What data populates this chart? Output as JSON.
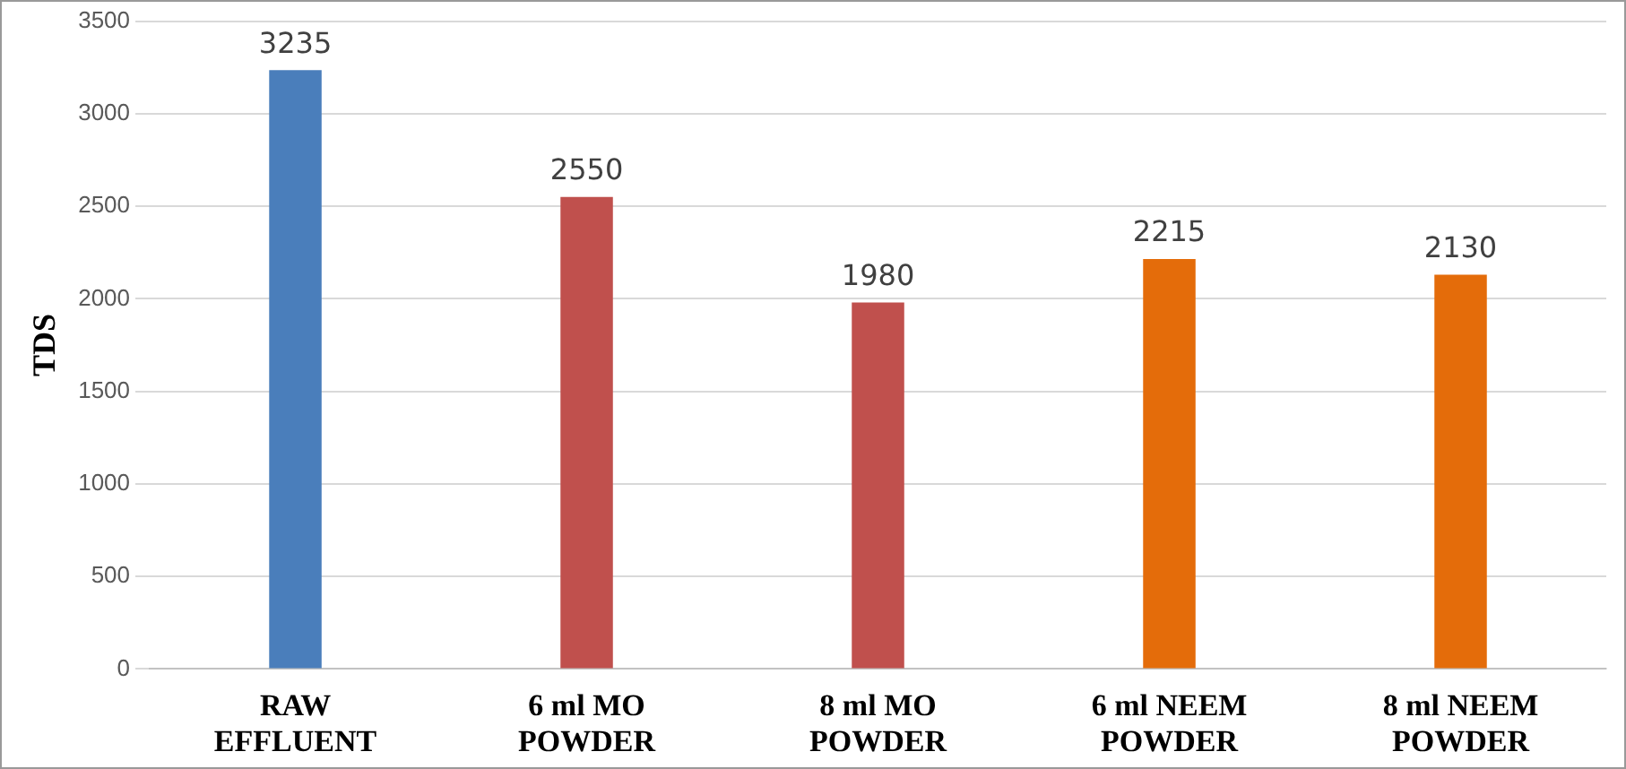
{
  "chart_data": {
    "type": "bar",
    "ylabel": "TDS",
    "categories": [
      "RAW EFFLUENT",
      "6 ml MO POWDER",
      "8 ml MO POWDER",
      "6 ml NEEM POWDER",
      "8 ml NEEM POWDER"
    ],
    "values": [
      3235,
      2550,
      1980,
      2215,
      2130
    ],
    "colors": [
      "#4a7ebb",
      "#c0504d",
      "#c0504d",
      "#e46c0a",
      "#e46c0a"
    ],
    "ylim": [
      0,
      3500
    ],
    "yticks": [
      0,
      500,
      1000,
      1500,
      2000,
      2500,
      3000,
      3500
    ],
    "grid": "y",
    "data_labels": true,
    "legend": false
  }
}
